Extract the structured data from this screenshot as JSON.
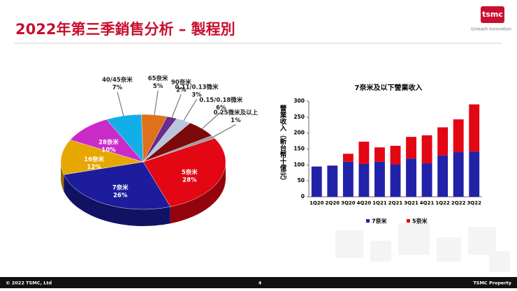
{
  "slide": {
    "title": "2022年第三季銷售分析 – 製程別",
    "logo": "tsmc",
    "tagline": "Unleash Innovation",
    "footer_left": "© 2022 TSMC, Ltd",
    "page_number": "4",
    "footer_right": "TSMC Property"
  },
  "chart_data": [
    {
      "type": "pie",
      "categories": [
        "5奈米",
        "7奈米",
        "16奈米",
        "28奈米",
        "40/45奈米",
        "65奈米",
        "90奈米",
        "0.11/0.13微米",
        "0.15/0.18微米",
        "0.25微米及以上"
      ],
      "values": [
        28,
        26,
        12,
        10,
        7,
        5,
        2,
        3,
        6,
        1
      ],
      "value_labels": [
        "28%",
        "26%",
        "12%",
        "10%",
        "7%",
        "5%",
        "2%",
        "3%",
        "6%",
        "1%"
      ],
      "colors": [
        "#e30613",
        "#1c1c9c",
        "#e6a700",
        "#c92bc9",
        "#12aee8",
        "#e0701a",
        "#6b2d8c",
        "#b9c6dc",
        "#7d0a0a",
        "#9a9a9a"
      ]
    },
    {
      "type": "stacked_bar",
      "title": "7奈米及以下營業收入",
      "ylabel": "營業收入（新台幣十億元）",
      "categories": [
        "1Q20",
        "2Q20",
        "3Q20",
        "4Q20",
        "1Q21",
        "2Q21",
        "3Q21",
        "4Q21",
        "1Q22",
        "2Q22",
        "3Q22"
      ],
      "series": [
        {
          "name": "7奈米",
          "color": "#2222a8",
          "values": [
            95,
            98,
            110,
            103,
            110,
            102,
            120,
            105,
            130,
            140,
            142
          ]
        },
        {
          "name": "5奈米",
          "color": "#e30613",
          "values": [
            0,
            0,
            25,
            70,
            45,
            58,
            68,
            88,
            88,
            103,
            148
          ]
        }
      ],
      "ylim": [
        0,
        300
      ],
      "yticks": [
        0,
        50,
        100,
        150,
        200,
        250,
        300
      ]
    }
  ]
}
